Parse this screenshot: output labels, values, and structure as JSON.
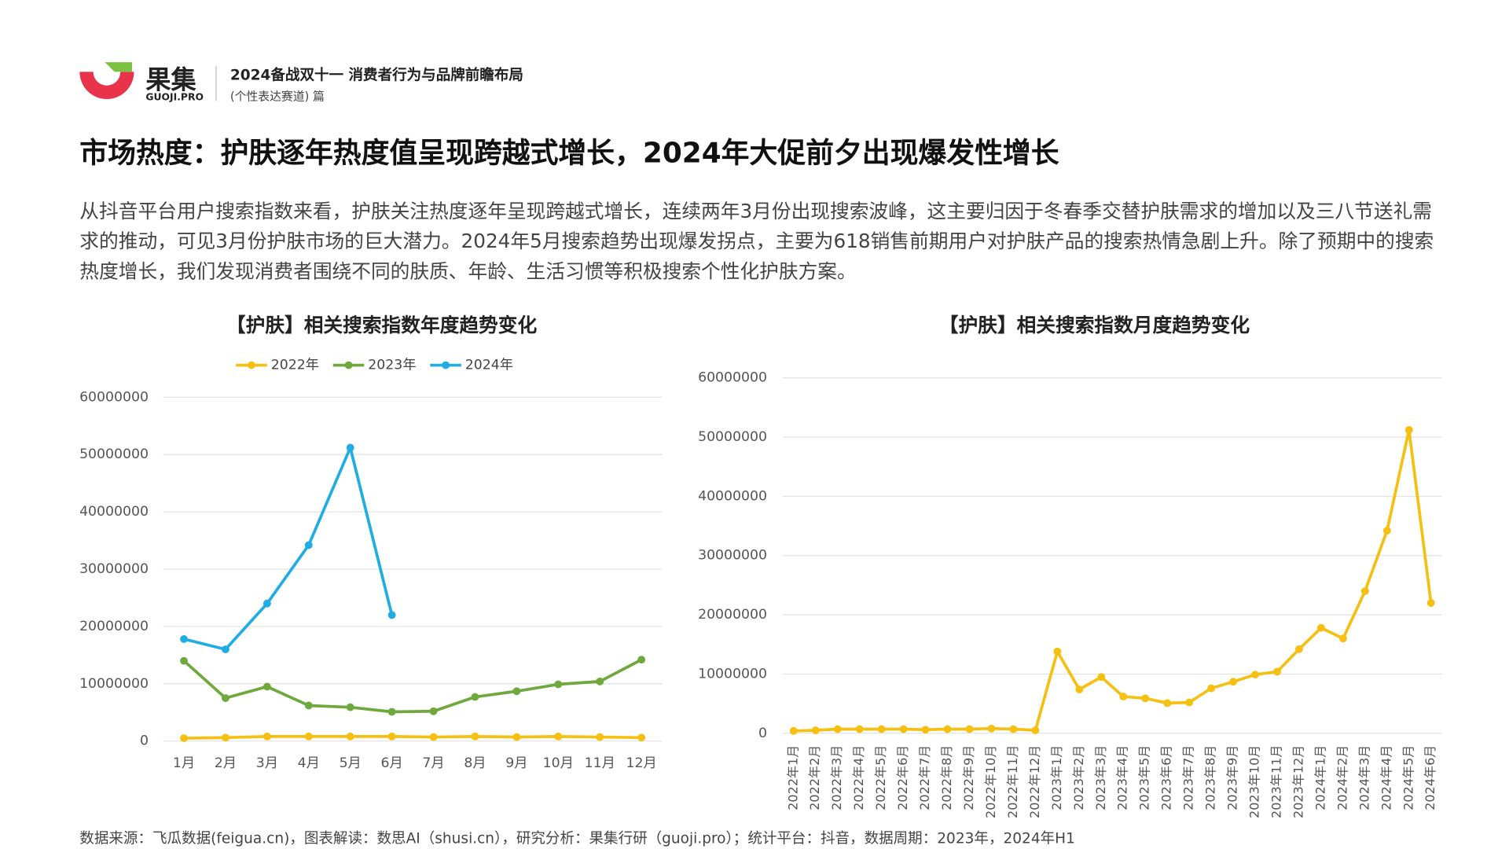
{
  "header": {
    "brand": "果集",
    "brand_sub": "GUOJI.PRO",
    "report": "2024备战双十一 消费者行为与品牌前瞻布局",
    "track": "(个性表达赛道) 篇"
  },
  "title": "市场热度：护肤逐年热度值呈现跨越式增长，2024年大促前夕出现爆发性增长",
  "body": "从抖音平台用户搜索指数来看，护肤关注热度逐年呈现跨越式增长，连续两年3月份出现搜索波峰，这主要归因于冬春季交替护肤需求的增加以及三八节送礼需求的推动，可见3月份护肤市场的巨大潜力。2024年5月搜索趋势出现爆发拐点，主要为618销售前期用户对护肤产品的搜索热情急剧上升。除了预期中的搜索热度增长，我们发现消费者围绕不同的肤质、年龄、生活习惯等积极搜索个性化护肤方案。",
  "source": "数据来源：飞瓜数据(feigua.cn)，图表解读：数思AI（shusi.cn），研究分析：果集行研（guoji.pro）；统计平台：抖音，数据周期：2023年，2024年H1",
  "chart_data": [
    {
      "type": "line",
      "title": "【护肤】相关搜索指数年度趋势变化",
      "legend": "top",
      "grid": true,
      "categories": [
        "1月",
        "2月",
        "3月",
        "4月",
        "5月",
        "6月",
        "7月",
        "8月",
        "9月",
        "10月",
        "11月",
        "12月"
      ],
      "series": [
        {
          "name": "2022年",
          "color": "#f5c012",
          "values": [
            500000,
            600000,
            800000,
            800000,
            800000,
            800000,
            700000,
            800000,
            700000,
            800000,
            700000,
            600000
          ]
        },
        {
          "name": "2023年",
          "color": "#6fa83c",
          "values": [
            14000000,
            7500000,
            9500000,
            6200000,
            5900000,
            5100000,
            5200000,
            7700000,
            8700000,
            9900000,
            10400000,
            14200000
          ]
        },
        {
          "name": "2024年",
          "color": "#1fade3",
          "values": [
            17800000,
            16000000,
            24000000,
            34200000,
            51200000,
            22000000,
            null,
            null,
            null,
            null,
            null,
            null
          ]
        }
      ],
      "ylim": [
        0,
        60000000
      ],
      "yticks": [
        0,
        10000000,
        20000000,
        30000000,
        40000000,
        50000000,
        60000000
      ]
    },
    {
      "type": "line",
      "title": "【护肤】相关搜索指数月度趋势变化",
      "grid": true,
      "categories": [
        "2022年1月",
        "2022年2月",
        "2022年3月",
        "2022年4月",
        "2022年5月",
        "2022年6月",
        "2022年7月",
        "2022年8月",
        "2022年9月",
        "2022年10月",
        "2022年11月",
        "2022年12月",
        "2023年1月",
        "2023年2月",
        "2023年3月",
        "2023年4月",
        "2023年5月",
        "2023年6月",
        "2023年7月",
        "2023年8月",
        "2023年9月",
        "2023年10月",
        "2023年11月",
        "2023年12月",
        "2024年1月",
        "2024年2月",
        "2024年3月",
        "2024年4月",
        "2024年5月",
        "2024年6月"
      ],
      "color": "#f5c012",
      "values": [
        400000,
        500000,
        700000,
        700000,
        700000,
        700000,
        600000,
        700000,
        700000,
        800000,
        700000,
        500000,
        13800000,
        7400000,
        9500000,
        6200000,
        5900000,
        5100000,
        5200000,
        7600000,
        8700000,
        9900000,
        10400000,
        14200000,
        17800000,
        16000000,
        24000000,
        34200000,
        51200000,
        22000000
      ],
      "ylim": [
        0,
        60000000
      ],
      "yticks": [
        0,
        10000000,
        20000000,
        30000000,
        40000000,
        50000000,
        60000000
      ]
    }
  ]
}
